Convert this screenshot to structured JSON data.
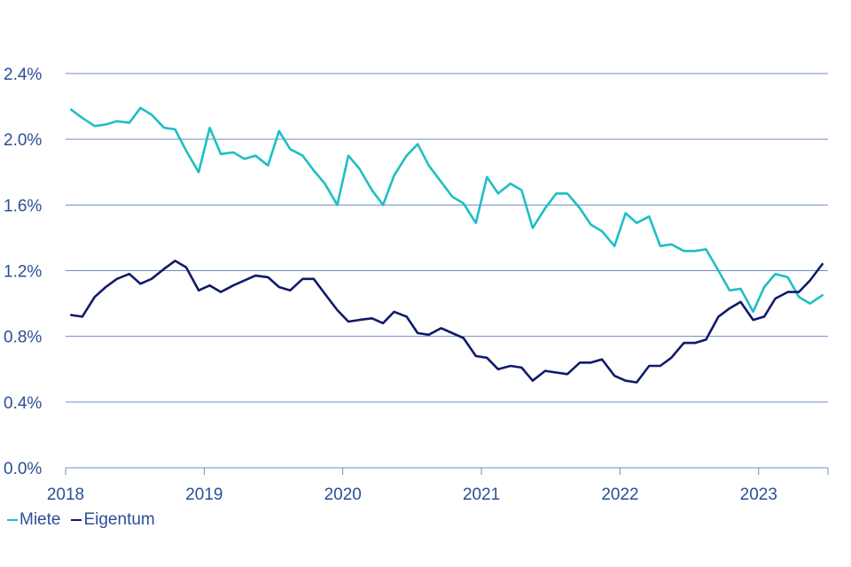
{
  "chart_data": {
    "type": "line",
    "y_axis": {
      "min": 0.0,
      "max": 2.4,
      "ticks": [
        0.0,
        0.4,
        0.8,
        1.2,
        1.6,
        2.0,
        2.4
      ],
      "tick_labels": [
        "0.0%",
        "0.4%",
        "0.8%",
        "1.2%",
        "1.6%",
        "2.0%",
        "2.4%"
      ]
    },
    "x_axis": {
      "min": 2018.0,
      "max": 2023.5,
      "ticks": [
        2018,
        2019,
        2020,
        2021,
        2022,
        2023
      ],
      "tick_labels": [
        "2018",
        "2019",
        "2020",
        "2021",
        "2022",
        "2023"
      ]
    },
    "grid": "horizontal",
    "legend_position": "bottom-left",
    "series": [
      {
        "name": "Miete",
        "color": "#1dbfc4",
        "x": [
          2018.04,
          2018.12,
          2018.21,
          2018.29,
          2018.37,
          2018.46,
          2018.54,
          2018.62,
          2018.71,
          2018.79,
          2018.87,
          2018.96,
          2019.04,
          2019.12,
          2019.21,
          2019.29,
          2019.37,
          2019.46,
          2019.54,
          2019.62,
          2019.71,
          2019.79,
          2019.87,
          2019.96,
          2020.04,
          2020.12,
          2020.21,
          2020.29,
          2020.37,
          2020.46,
          2020.54,
          2020.62,
          2020.71,
          2020.79,
          2020.87,
          2020.96,
          2021.04,
          2021.12,
          2021.21,
          2021.29,
          2021.37,
          2021.46,
          2021.54,
          2021.62,
          2021.71,
          2021.79,
          2021.87,
          2021.96,
          2022.04,
          2022.12,
          2022.21,
          2022.29,
          2022.37,
          2022.46,
          2022.54,
          2022.62,
          2022.71,
          2022.79,
          2022.87,
          2022.96,
          2023.04,
          2023.12,
          2023.21,
          2023.29,
          2023.37,
          2023.46
        ],
        "y": [
          2.18,
          2.13,
          2.08,
          2.09,
          2.11,
          2.1,
          2.19,
          2.15,
          2.07,
          2.06,
          1.93,
          1.8,
          2.07,
          1.91,
          1.92,
          1.88,
          1.9,
          1.84,
          2.05,
          1.94,
          1.9,
          1.81,
          1.73,
          1.6,
          1.9,
          1.82,
          1.69,
          1.6,
          1.78,
          1.9,
          1.97,
          1.84,
          1.74,
          1.65,
          1.61,
          1.49,
          1.77,
          1.67,
          1.73,
          1.69,
          1.46,
          1.58,
          1.67,
          1.67,
          1.58,
          1.48,
          1.44,
          1.35,
          1.55,
          1.49,
          1.53,
          1.35,
          1.36,
          1.32,
          1.32,
          1.33,
          1.2,
          1.08,
          1.09,
          0.95,
          1.1,
          1.18,
          1.16,
          1.04,
          1.0,
          1.05
        ]
      },
      {
        "name": "Eigentum",
        "color": "#0f1a6b",
        "x": [
          2018.04,
          2018.12,
          2018.21,
          2018.29,
          2018.37,
          2018.46,
          2018.54,
          2018.62,
          2018.71,
          2018.79,
          2018.87,
          2018.96,
          2019.04,
          2019.12,
          2019.21,
          2019.29,
          2019.37,
          2019.46,
          2019.54,
          2019.62,
          2019.71,
          2019.79,
          2019.87,
          2019.96,
          2020.04,
          2020.12,
          2020.21,
          2020.29,
          2020.37,
          2020.46,
          2020.54,
          2020.62,
          2020.71,
          2020.79,
          2020.87,
          2020.96,
          2021.04,
          2021.12,
          2021.21,
          2021.29,
          2021.37,
          2021.46,
          2021.54,
          2021.62,
          2021.71,
          2021.79,
          2021.87,
          2021.96,
          2022.04,
          2022.12,
          2022.21,
          2022.29,
          2022.37,
          2022.46,
          2022.54,
          2022.62,
          2022.71,
          2022.79,
          2022.87,
          2022.96,
          2023.04,
          2023.12,
          2023.21,
          2023.29,
          2023.37,
          2023.46
        ],
        "y": [
          0.93,
          0.92,
          1.04,
          1.1,
          1.15,
          1.18,
          1.12,
          1.15,
          1.21,
          1.26,
          1.22,
          1.08,
          1.11,
          1.07,
          1.11,
          1.14,
          1.17,
          1.16,
          1.1,
          1.08,
          1.15,
          1.15,
          1.06,
          0.96,
          0.89,
          0.9,
          0.91,
          0.88,
          0.95,
          0.92,
          0.82,
          0.81,
          0.85,
          0.82,
          0.79,
          0.68,
          0.67,
          0.6,
          0.62,
          0.61,
          0.53,
          0.59,
          0.58,
          0.57,
          0.64,
          0.64,
          0.66,
          0.56,
          0.53,
          0.52,
          0.62,
          0.62,
          0.67,
          0.76,
          0.76,
          0.78,
          0.92,
          0.97,
          1.01,
          0.9,
          0.92,
          1.03,
          1.07,
          1.07,
          1.14,
          1.24
        ]
      }
    ]
  }
}
